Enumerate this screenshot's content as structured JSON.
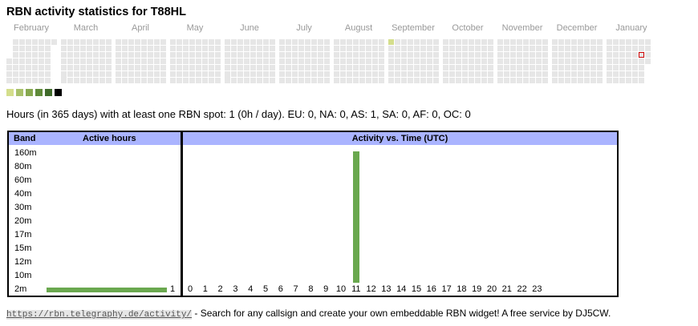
{
  "title": "RBN activity statistics for T88HL",
  "months": [
    "February",
    "March",
    "April",
    "May",
    "June",
    "July",
    "August",
    "September",
    "October",
    "November",
    "December",
    "January"
  ],
  "heatmap_colors": {
    "empty": "#e6e6e6",
    "active": "#d4de8c",
    "today_border": "#cc0000"
  },
  "heatmap_active_cells": [
    {
      "month": "September",
      "week": 0,
      "day": 0
    }
  ],
  "legend_colors": [
    "#d4de8c",
    "#a8c16a",
    "#86a84f",
    "#5f8a39",
    "#3f6a2a",
    "#000000"
  ],
  "summary": "Hours (in 365 days) with at least one RBN spot: 1 (0h / day). EU: 0, NA: 0, AS: 1, SA: 0, AF: 0, OC: 0",
  "band_table": {
    "col_band": "Band",
    "col_active": "Active hours",
    "bands": [
      "160m",
      "80m",
      "60m",
      "40m",
      "30m",
      "20m",
      "17m",
      "15m",
      "12m",
      "10m",
      "2m"
    ],
    "active_hours": [
      0,
      0,
      0,
      0,
      0,
      0,
      0,
      0,
      0,
      0,
      1
    ]
  },
  "time_chart": {
    "title": "Activity vs. Time (UTC)",
    "hours": [
      "0",
      "1",
      "2",
      "3",
      "4",
      "5",
      "6",
      "7",
      "8",
      "9",
      "10",
      "11",
      "12",
      "13",
      "14",
      "15",
      "16",
      "17",
      "18",
      "19",
      "20",
      "21",
      "22",
      "23"
    ],
    "values": [
      0,
      0,
      0,
      0,
      0,
      0,
      0,
      0,
      0,
      0,
      0,
      1,
      0,
      0,
      0,
      0,
      0,
      0,
      0,
      0,
      0,
      0,
      0,
      0
    ],
    "bar_color": "#6aa84f",
    "header_color": "#aab4ff"
  },
  "footer": {
    "link": "https://rbn.telegraphy.de/activity/",
    "text": " - Search for any callsign and create your own embeddable RBN widget! A free service by DJ5CW."
  }
}
